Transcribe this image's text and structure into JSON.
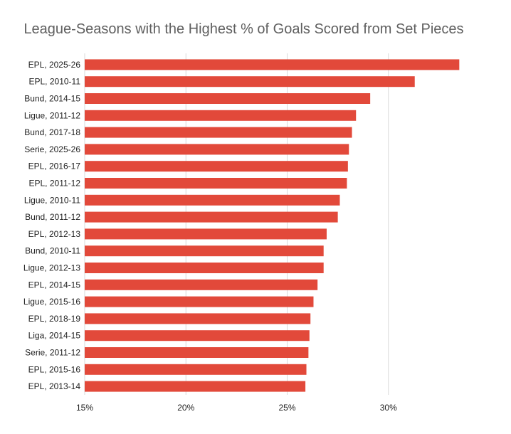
{
  "chart_data": {
    "type": "bar",
    "orientation": "horizontal",
    "title": "League-Seasons with the Highest % of Goals Scored from Set Pieces",
    "xlabel": "",
    "ylabel": "",
    "categories": [
      "EPL, 2025-26",
      "EPL, 2010-11",
      "Bund, 2014-15",
      "Ligue, 2011-12",
      "Bund, 2017-18",
      "Serie, 2025-26",
      "EPL, 2016-17",
      "EPL, 2011-12",
      "Ligue, 2010-11",
      "Bund, 2011-12",
      "EPL, 2012-13",
      "Bund, 2010-11",
      "Ligue, 2012-13",
      "EPL, 2014-15",
      "Ligue, 2015-16",
      "EPL, 2018-19",
      "Liga, 2014-15",
      "Serie, 2011-12",
      "EPL, 2015-16",
      "EPL, 2013-14"
    ],
    "values": [
      33.5,
      31.3,
      29.1,
      28.4,
      28.2,
      28.05,
      28.0,
      27.95,
      27.6,
      27.5,
      26.95,
      26.8,
      26.8,
      26.5,
      26.3,
      26.15,
      26.1,
      26.05,
      25.95,
      25.9
    ],
    "xlim": [
      15,
      35
    ],
    "xticks": [
      15,
      20,
      25,
      30
    ],
    "xtick_labels": [
      "15%",
      "20%",
      "25%",
      "30%"
    ],
    "grid": true,
    "legend": "none",
    "bar_color": "#e2493a",
    "grid_color": "#d9d9d9",
    "text_color": "#222222",
    "title_color": "#5f5f5f"
  }
}
